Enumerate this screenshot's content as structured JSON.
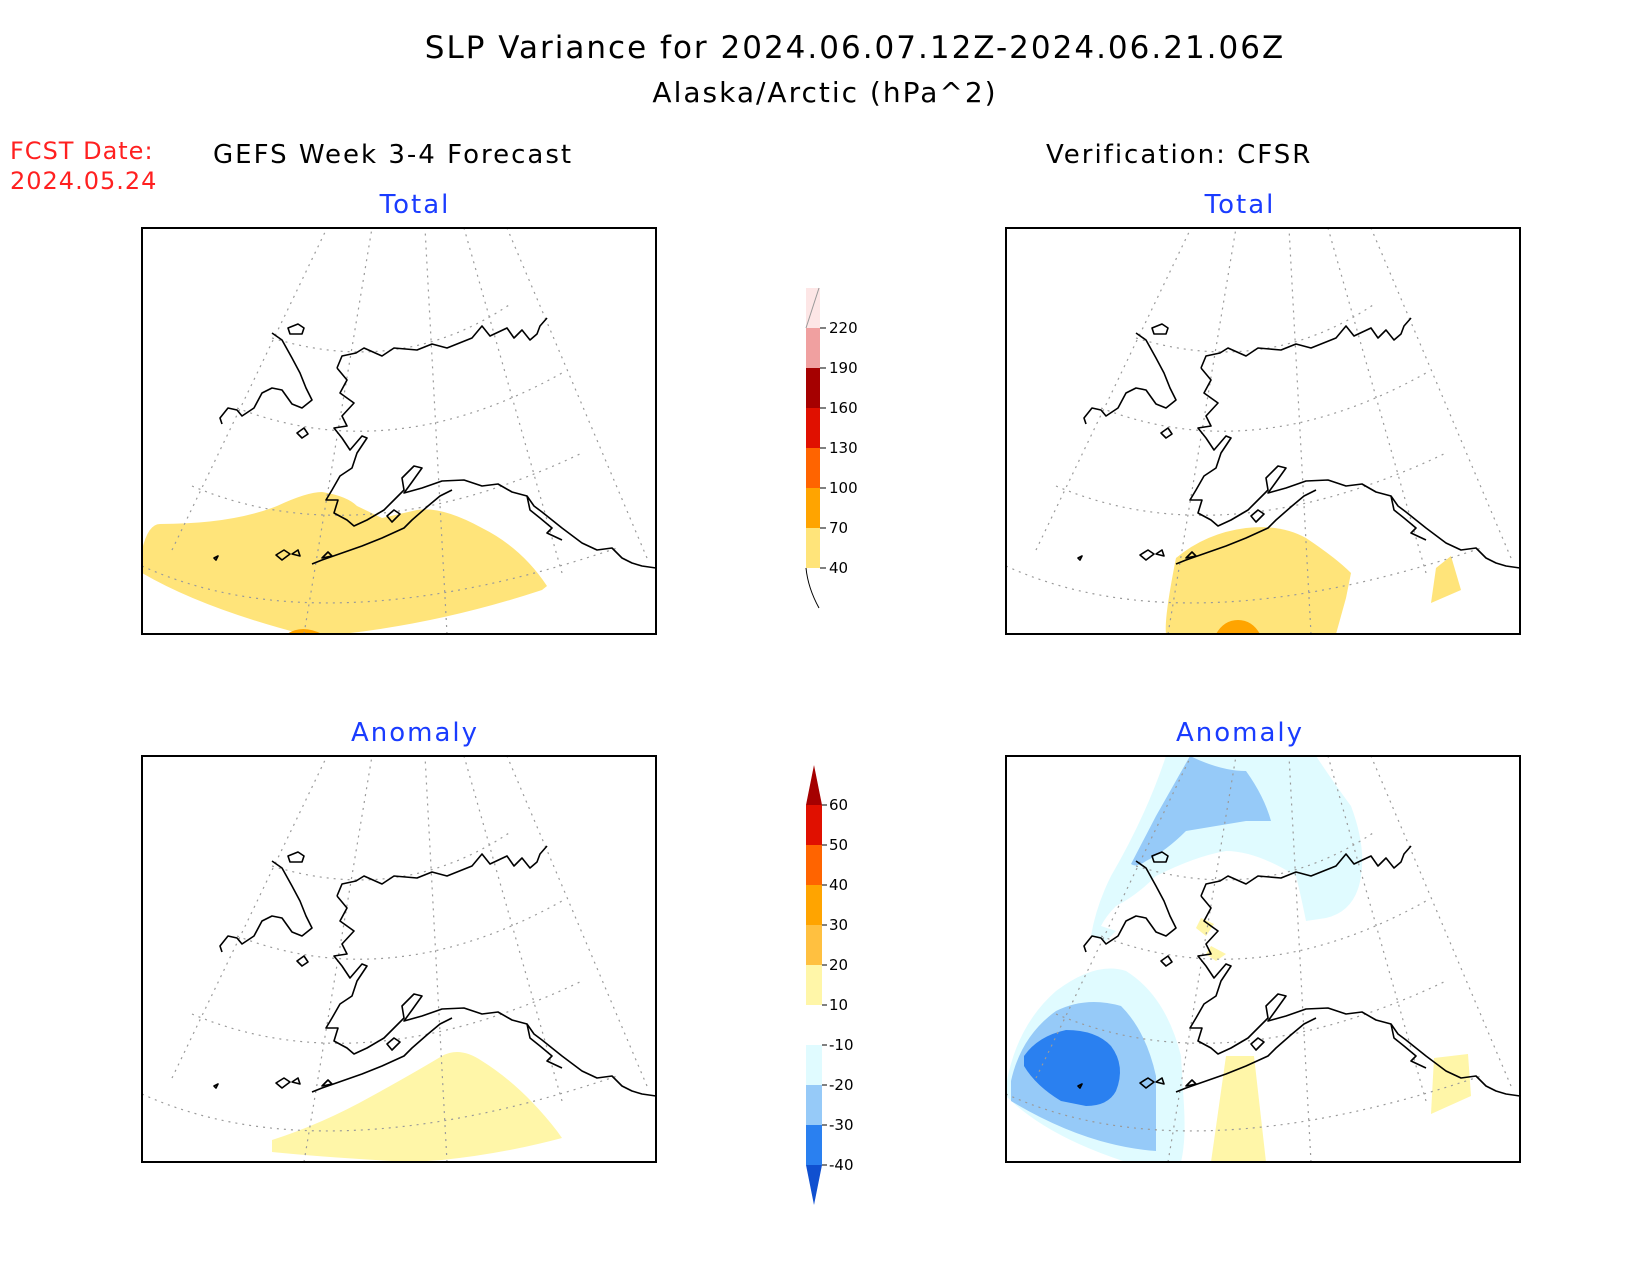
{
  "header": {
    "title": "SLP Variance for 2024.06.07.12Z-2024.06.21.06Z",
    "subtitle": "Alaska/Arctic (hPa^2)",
    "fcst_label": "FCST Date:",
    "fcst_date": "2024.05.24"
  },
  "columns": {
    "left": "GEFS Week 3-4 Forecast",
    "right": "Verification: CFSR"
  },
  "panels": {
    "forecast_total": {
      "title": "Total"
    },
    "forecast_anomaly": {
      "title": "Anomaly"
    },
    "verification_total": {
      "title": "Total"
    },
    "verification_anomaly": {
      "title": "Anomaly"
    }
  },
  "colorbars": {
    "total": {
      "levels": [
        "40",
        "70",
        "100",
        "130",
        "160",
        "190",
        "220"
      ],
      "colors": [
        "#ffe47a",
        "#ffa400",
        "#ff6400",
        "#e01000",
        "#a50000",
        "#f0a0a0",
        "#fde6e6"
      ]
    },
    "anomaly": {
      "levels": [
        "-40",
        "-30",
        "-20",
        "-10",
        "10",
        "20",
        "30",
        "40",
        "50",
        "60"
      ],
      "colors": [
        "#1050d0",
        "#2a80f0",
        "#96caf8",
        "#e0fbff",
        "#ffffff",
        "#fff6a8",
        "#ffc040",
        "#ffa400",
        "#ff6400",
        "#e01000",
        "#a50000"
      ]
    }
  },
  "shading_colors": {
    "yellow_40": "#ffe47a",
    "orange_70": "#ffa400",
    "light_yellow": "#fff6a8",
    "pale_blue": "#e0fbff",
    "light_blue": "#96caf8",
    "mid_blue": "#2a80f0"
  }
}
